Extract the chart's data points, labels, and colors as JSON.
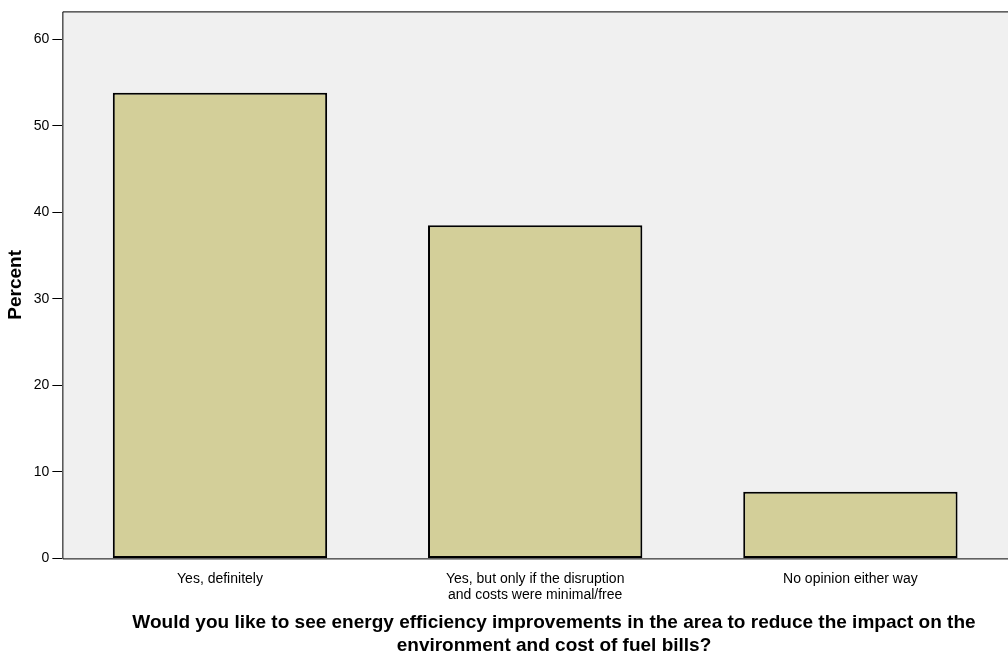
{
  "chart_data": {
    "type": "bar",
    "xlabel": "Would you like to see energy efficiency improvements in the area to reduce the impact on the environment and cost of fuel bills?",
    "ylabel": "Percent",
    "categories": [
      "Yes, definitely",
      "Yes, but only if the disruption\nand costs were minimal/free",
      "No opinion either way"
    ],
    "values": [
      53.8,
      38.5,
      7.7
    ],
    "color": "#d3cf99",
    "ylim": [
      0,
      63.2
    ],
    "yticks": [
      0,
      10,
      20,
      30,
      40,
      50,
      60
    ],
    "grid": false,
    "legend": false
  }
}
